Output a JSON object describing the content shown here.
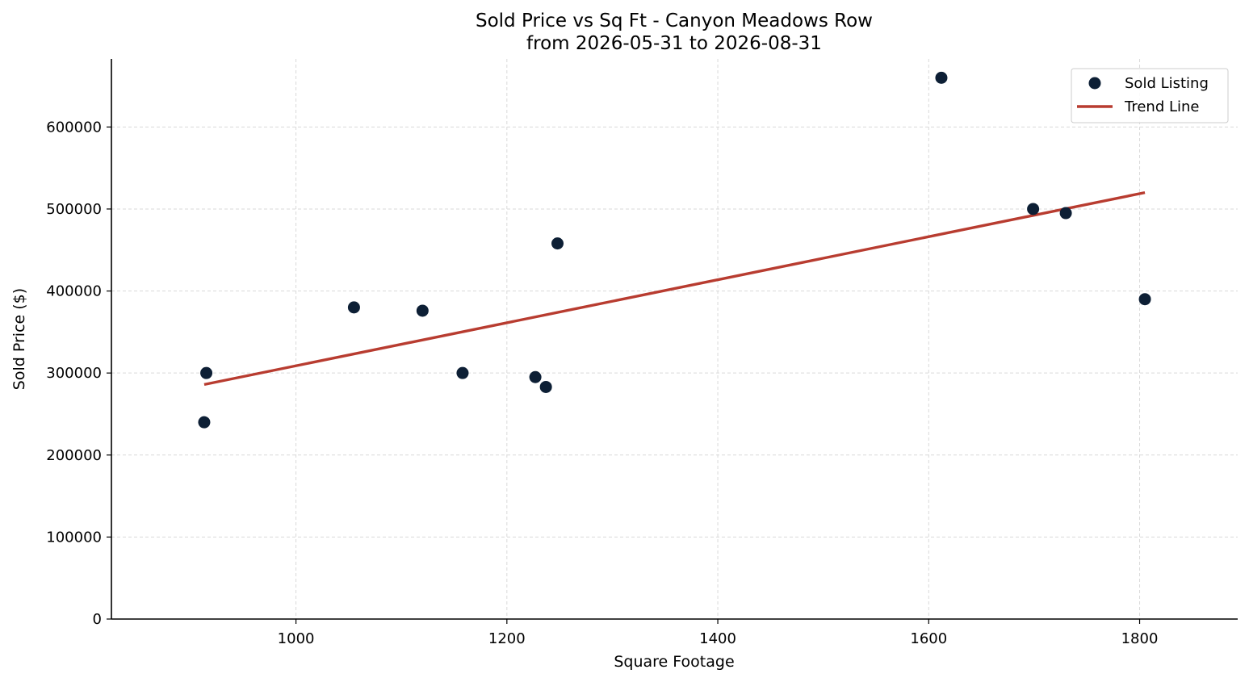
{
  "chart_data": {
    "type": "scatter",
    "title_line1": "Sold Price vs Sq Ft - Canyon Meadows Row",
    "title_line2": "from 2026-05-31 to 2026-08-31",
    "xlabel": "Square Footage",
    "ylabel": "Sold Price ($)",
    "xlim": [
      825,
      1893
    ],
    "ylim": [
      0,
      683000
    ],
    "x_ticks": [
      1000,
      1200,
      1400,
      1600,
      1800
    ],
    "y_ticks": [
      0,
      100000,
      200000,
      300000,
      400000,
      500000,
      600000
    ],
    "grid": true,
    "legend_position": "top-right",
    "series": [
      {
        "name": "Sold Listing",
        "kind": "scatter",
        "color": "#0d1f35",
        "x": [
          913,
          915,
          1055,
          1120,
          1158,
          1227,
          1237,
          1248,
          1612,
          1699,
          1730,
          1805
        ],
        "y": [
          240000,
          300000,
          380000,
          376000,
          300000,
          295000,
          283000,
          458000,
          660000,
          500000,
          495000,
          390000
        ]
      },
      {
        "name": "Trend Line",
        "kind": "line",
        "color": "#b83c30",
        "x": [
          913,
          1805
        ],
        "y": [
          286000,
          520000
        ]
      }
    ]
  }
}
